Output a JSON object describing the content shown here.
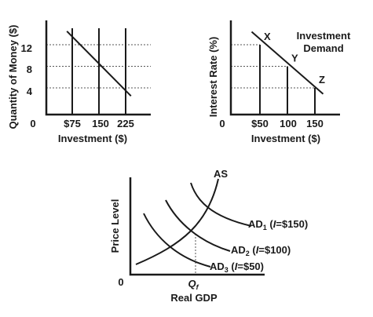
{
  "chart_data": [
    {
      "type": "line",
      "ylabel": "Quantity of Money ($)",
      "xlabel": "Investment ($)",
      "origin_label": "0",
      "x_ticks": [
        "$75",
        "150",
        "225"
      ],
      "y_ticks": [
        "12",
        "8",
        "4"
      ],
      "series": [
        {
          "values": [
            [
              60,
              14.5
            ],
            [
              240,
              2.5
            ]
          ]
        }
      ],
      "points": [
        [
          75,
          12
        ],
        [
          150,
          8
        ],
        [
          225,
          4
        ]
      ]
    },
    {
      "type": "line",
      "ylabel": "Interest Rate (%)",
      "xlabel": "Investment ($)",
      "origin_label": "0",
      "x_ticks": [
        "$50",
        "100",
        "150"
      ],
      "annotation": [
        "Investment",
        "Demand"
      ],
      "series": [
        {
          "values": [
            [
              35,
              8.5
            ],
            [
              165,
              1.3
            ]
          ]
        }
      ],
      "points": [
        {
          "label": "X",
          "x": 50,
          "y": 7
        },
        {
          "label": "Y",
          "x": 100,
          "y": 4.5
        },
        {
          "label": "Z",
          "x": 150,
          "y": 2
        }
      ]
    },
    {
      "type": "line",
      "ylabel": "Price Level",
      "xlabel": "Real GDP",
      "origin_label": "0",
      "x_marker": {
        "main": "Q",
        "sub": "f"
      },
      "curve_labels": {
        "as": "AS",
        "ad1": {
          "pre": "AD",
          "sub": "1",
          "open": " (",
          "var": "I",
          "rest": "=$150)"
        },
        "ad2": {
          "pre": "AD",
          "sub": "2",
          "open": " (",
          "var": "I",
          "rest": "=$100)"
        },
        "ad3": {
          "pre": "AD",
          "sub": "3",
          "open": " (",
          "var": "I",
          "rest": "=$50)"
        }
      }
    }
  ]
}
